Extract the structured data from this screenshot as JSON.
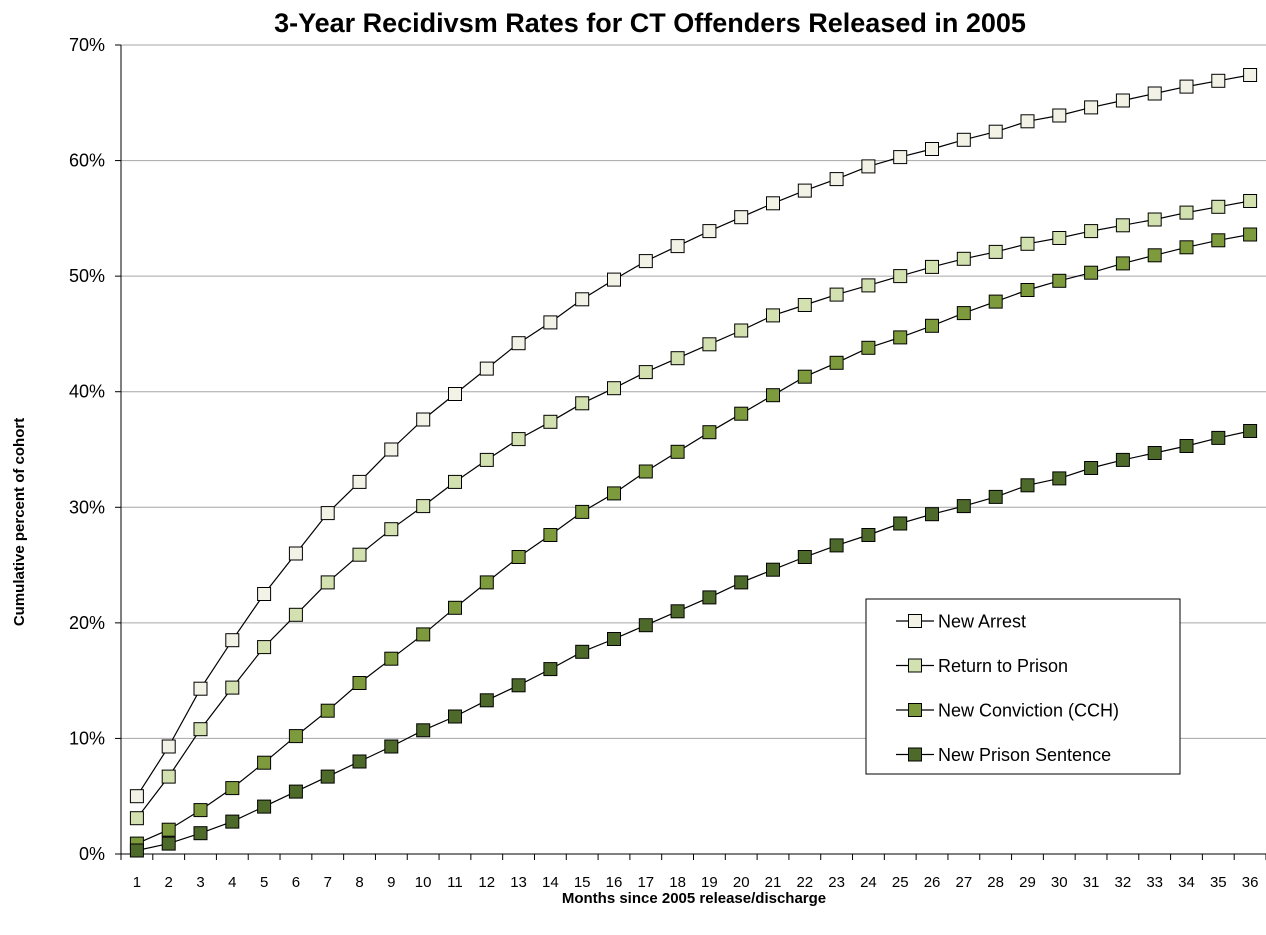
{
  "chart_data": {
    "type": "line",
    "title": "3-Year Recidivsm Rates for CT Offenders Released in 2005",
    "xlabel": "Months since 2005 release/discharge",
    "ylabel": "Cumulative percent of cohort",
    "x": [
      1,
      2,
      3,
      4,
      5,
      6,
      7,
      8,
      9,
      10,
      11,
      12,
      13,
      14,
      15,
      16,
      17,
      18,
      19,
      20,
      21,
      22,
      23,
      24,
      25,
      26,
      27,
      28,
      29,
      30,
      31,
      32,
      33,
      34,
      35,
      36
    ],
    "xtick_labels": [
      "1",
      "2",
      "3",
      "4",
      "5",
      "6",
      "7",
      "8",
      "9",
      "10",
      "11",
      "12",
      "13",
      "14",
      "15",
      "16",
      "17",
      "18",
      "19",
      "20",
      "21",
      "22",
      "23",
      "24",
      "25",
      "26",
      "27",
      "28",
      "29",
      "30",
      "31",
      "32",
      "33",
      "34",
      "35",
      "36"
    ],
    "ylim": [
      0,
      70
    ],
    "ytick_values": [
      0,
      10,
      20,
      30,
      40,
      50,
      60,
      70
    ],
    "ytick_labels": [
      "0%",
      "10%",
      "20%",
      "30%",
      "40%",
      "50%",
      "60%",
      "70%"
    ],
    "grid": "horizontal",
    "legend_position": "bottom-right",
    "series": [
      {
        "name": "New Arrest",
        "color": "#f2f2e6",
        "values": [
          5.0,
          9.3,
          14.3,
          18.5,
          22.5,
          26.0,
          29.5,
          32.2,
          35.0,
          37.6,
          39.8,
          42.0,
          44.2,
          46.0,
          48.0,
          49.7,
          51.3,
          52.6,
          53.9,
          55.1,
          56.3,
          57.4,
          58.4,
          59.5,
          60.3,
          61.0,
          61.8,
          62.5,
          63.4,
          63.9,
          64.6,
          65.2,
          65.8,
          66.4,
          66.9,
          67.4
        ]
      },
      {
        "name": "Return to Prison",
        "color": "#d3e0b0",
        "values": [
          3.1,
          6.7,
          10.8,
          14.4,
          17.9,
          20.7,
          23.5,
          25.9,
          28.1,
          30.1,
          32.2,
          34.1,
          35.9,
          37.4,
          39.0,
          40.3,
          41.7,
          42.9,
          44.1,
          45.3,
          46.6,
          47.5,
          48.4,
          49.2,
          50.0,
          50.8,
          51.5,
          52.1,
          52.8,
          53.3,
          53.9,
          54.4,
          54.9,
          55.5,
          56.0,
          56.5
        ]
      },
      {
        "name": "New Conviction (CCH)",
        "color": "#7d9b3d",
        "values": [
          0.9,
          2.1,
          3.8,
          5.7,
          7.9,
          10.2,
          12.4,
          14.8,
          16.9,
          19.0,
          21.3,
          23.5,
          25.7,
          27.6,
          29.6,
          31.2,
          33.1,
          34.8,
          36.5,
          38.1,
          39.7,
          41.3,
          42.5,
          43.8,
          44.7,
          45.7,
          46.8,
          47.8,
          48.8,
          49.6,
          50.3,
          51.1,
          51.8,
          52.5,
          53.1,
          53.6
        ]
      },
      {
        "name": "New Prison Sentence",
        "color": "#4e6a2b",
        "values": [
          0.3,
          0.9,
          1.8,
          2.8,
          4.1,
          5.4,
          6.7,
          8.0,
          9.3,
          10.7,
          11.9,
          13.3,
          14.6,
          16.0,
          17.5,
          18.6,
          19.8,
          21.0,
          22.2,
          23.5,
          24.6,
          25.7,
          26.7,
          27.6,
          28.6,
          29.4,
          30.1,
          30.9,
          31.9,
          32.5,
          33.4,
          34.1,
          34.7,
          35.3,
          36.0,
          36.6
        ]
      }
    ]
  }
}
